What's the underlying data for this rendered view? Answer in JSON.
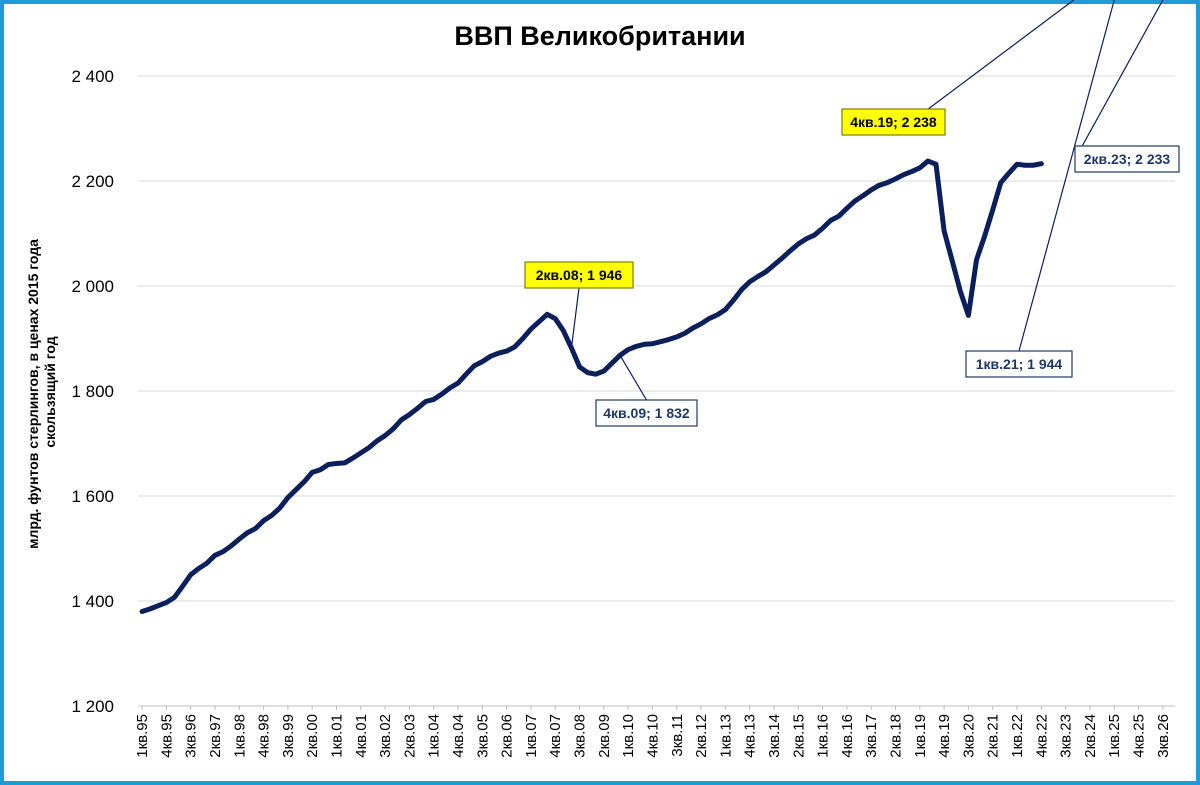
{
  "colors": {
    "frame": "#1f9bd7",
    "line": "#0a1f5c",
    "grid": "#d9d9d9",
    "highlight_fill": "#ffff00",
    "label_dark": "#1f3864"
  },
  "chart_data": {
    "type": "line",
    "title": "ВВП Великобритании",
    "ylabel_lines": [
      "млрд. фунтов стерлингов, в ценах 2015 года",
      "скользящий год"
    ],
    "ylim": [
      1200,
      2400
    ],
    "yticks": [
      1200,
      1400,
      1600,
      1800,
      2000,
      2200,
      2400
    ],
    "ytick_labels": [
      "1 200",
      "1 400",
      "1 600",
      "1 800",
      "2 000",
      "2 200",
      "2 400"
    ],
    "grid": "horizontal",
    "x_tick_labels": [
      "1кв.95",
      "4кв.95",
      "3кв.96",
      "2кв.97",
      "1кв.98",
      "4кв.98",
      "3кв.99",
      "2кв.00",
      "1кв.01",
      "4кв.01",
      "3кв.02",
      "2кв.03",
      "1кв.04",
      "4кв.04",
      "3кв.05",
      "2кв.06",
      "1кв.07",
      "4кв.07",
      "3кв.08",
      "2кв.09",
      "1кв.10",
      "4кв.10",
      "3кв.11",
      "2кв.12",
      "1кв.13",
      "4кв.13",
      "3кв.14",
      "2кв.15",
      "1кв.16",
      "4кв.16",
      "3кв.17",
      "2кв.18",
      "1кв.19",
      "4кв.19",
      "3кв.20",
      "2кв.21",
      "1кв.22",
      "4кв.22",
      "3кв.23",
      "2кв.24",
      "1кв.25",
      "4кв.25",
      "3кв.26"
    ],
    "series": [
      {
        "values": [
          1380,
          1385,
          1391,
          1397,
          1407,
          1428,
          1450,
          1462,
          1472,
          1487,
          1494,
          1505,
          1518,
          1530,
          1538,
          1553,
          1563,
          1577,
          1597,
          1612,
          1627,
          1645,
          1650,
          1660,
          1662,
          1663,
          1672,
          1682,
          1692,
          1705,
          1715,
          1728,
          1745,
          1755,
          1767,
          1780,
          1784,
          1794,
          1806,
          1815,
          1832,
          1848,
          1856,
          1866,
          1872,
          1876,
          1884,
          1900,
          1918,
          1932,
          1946,
          1938,
          1915,
          1882,
          1846,
          1835,
          1832,
          1838,
          1853,
          1868,
          1879,
          1885,
          1889,
          1890,
          1894,
          1898,
          1903,
          1910,
          1920,
          1928,
          1938,
          1945,
          1955,
          1973,
          1993,
          2008,
          2018,
          2027,
          2040,
          2053,
          2067,
          2080,
          2090,
          2097,
          2110,
          2125,
          2133,
          2148,
          2162,
          2172,
          2183,
          2192,
          2197,
          2204,
          2212,
          2218,
          2225,
          2238,
          2232,
          2105,
          2048,
          1990,
          1944,
          2050,
          2095,
          2145,
          2197,
          2215,
          2232,
          2230,
          2230,
          2233
        ]
      }
    ],
    "annotations": [
      {
        "text": "2кв.08;  1 946",
        "highlight": true
      },
      {
        "text": "4кв.09;  1 832",
        "highlight": false
      },
      {
        "text": "4кв.19;  2 238",
        "highlight": true
      },
      {
        "text": "1кв.21;  1 944",
        "highlight": false
      },
      {
        "text": "2кв.23;  2 233",
        "highlight": false
      }
    ]
  }
}
